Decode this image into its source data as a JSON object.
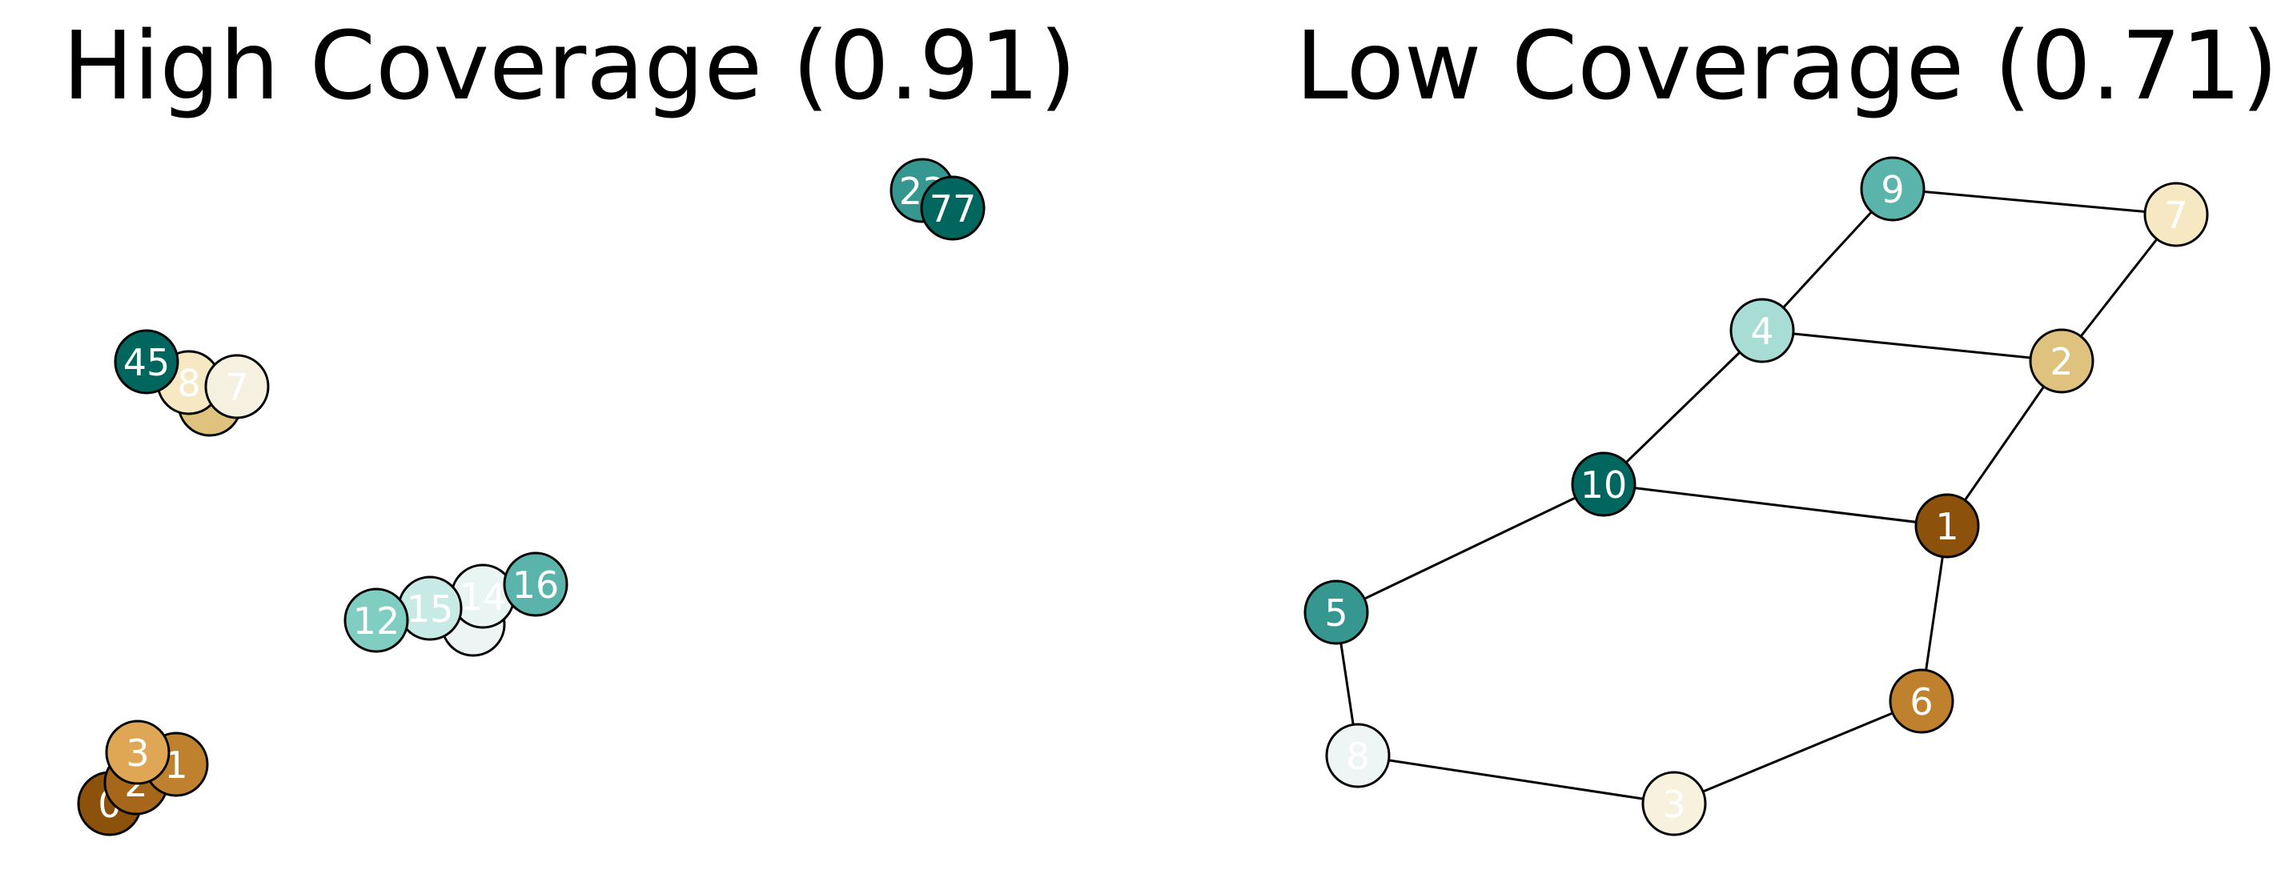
{
  "panels": [
    {
      "title": "High Coverage (0.91)",
      "edges": [],
      "nodes": [
        {
          "label": "23",
          "color": "#35978f"
        },
        {
          "label": "77",
          "color": "#01665e"
        },
        {
          "label": "",
          "color": "#dfc27d"
        },
        {
          "label": "8",
          "color": "#f6e8c3"
        },
        {
          "label": "7",
          "color": "#f5f0df"
        },
        {
          "label": "45",
          "color": "#01665e"
        },
        {
          "label": "",
          "color": "#eef4f3"
        },
        {
          "label": "14",
          "color": "#e8f5f2"
        },
        {
          "label": "16",
          "color": "#5ab4ac"
        },
        {
          "label": "15",
          "color": "#c7eae5"
        },
        {
          "label": "12",
          "color": "#80cdc1"
        },
        {
          "label": "0",
          "color": "#8c510a"
        },
        {
          "label": "2",
          "color": "#a6671b"
        },
        {
          "label": "1",
          "color": "#bf812d"
        },
        {
          "label": "3",
          "color": "#dfa656"
        }
      ]
    },
    {
      "title": "Low Coverage (0.71)",
      "nodes": [
        {
          "label": "9",
          "color": "#5ab4ac"
        },
        {
          "label": "7",
          "color": "#f6e8c3"
        },
        {
          "label": "4",
          "color": "#a8ddd5"
        },
        {
          "label": "2",
          "color": "#dfc27d"
        },
        {
          "label": "10",
          "color": "#01665e"
        },
        {
          "label": "1",
          "color": "#8c510a"
        },
        {
          "label": "5",
          "color": "#35978f"
        },
        {
          "label": "6",
          "color": "#bf812d"
        },
        {
          "label": "8",
          "color": "#eef6f5"
        },
        {
          "label": "3",
          "color": "#f8f1de"
        }
      ],
      "edges": [
        [
          "9",
          "7"
        ],
        [
          "9",
          "4"
        ],
        [
          "7",
          "2"
        ],
        [
          "4",
          "2"
        ],
        [
          "4",
          "10"
        ],
        [
          "2",
          "1"
        ],
        [
          "10",
          "1"
        ],
        [
          "10",
          "5"
        ],
        [
          "1",
          "6"
        ],
        [
          "5",
          "8"
        ],
        [
          "8",
          "3"
        ],
        [
          "3",
          "6"
        ]
      ]
    }
  ]
}
